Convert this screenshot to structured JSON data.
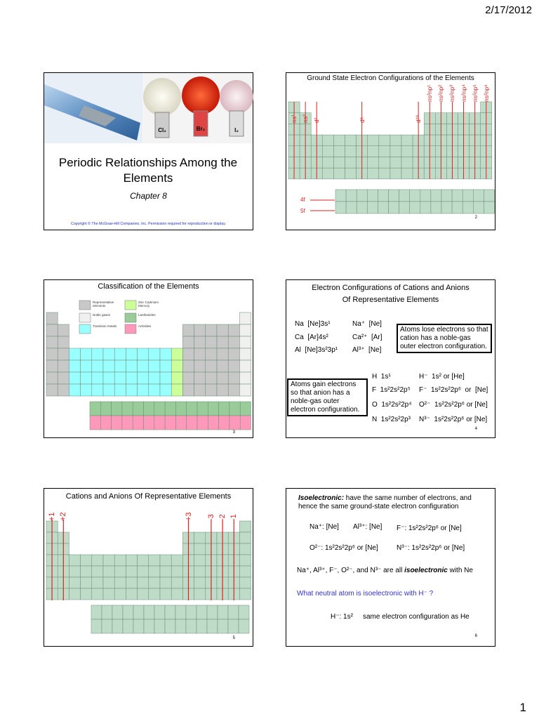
{
  "header": {
    "date": "2/17/2012"
  },
  "slides": [
    {
      "title": "Periodic Relationships Among the Elements",
      "subtitle": "Chapter 8",
      "flask_labels": [
        "Cl₂",
        "Br₂",
        "I₂"
      ],
      "copyright": "Copyright © The McGraw-Hill Companies, Inc.  Permission required for reproduction or display."
    },
    {
      "title": "Ground State Electron Configurations of the Elements",
      "s_labels": [
        "ns¹",
        "ns²"
      ],
      "d_labels": [
        "d¹",
        "d⁵",
        "d¹⁰"
      ],
      "p_labels": [
        "ns²np¹",
        "ns²np²",
        "ns²np³",
        "ns²np⁴",
        "ns²np⁵",
        "ns²np⁶"
      ],
      "f_labels": [
        "4f",
        "5f"
      ],
      "page": "2"
    },
    {
      "title": "Classification of the Elements",
      "legend": [
        "Representative elements",
        "Noble gases",
        "Transition metals",
        "Zinc Cadmium Mercury",
        "Lanthanides",
        "Actinides"
      ],
      "page": "3"
    },
    {
      "title": [
        "Electron Configurations of Cations and Anions",
        "Of Representative Elements"
      ],
      "cations": [
        [
          "Na  [Ne]3s¹",
          "Na⁺  [Ne]"
        ],
        [
          "Ca  [Ar]4s²",
          "Ca²⁺  [Ar]"
        ],
        [
          "Al  [Ne]3s²3p¹",
          "Al³⁺  [Ne]"
        ]
      ],
      "cation_note": "Atoms lose electrons so that cation has a noble-gas outer electron configuration.",
      "anion_note": "Atoms gain electrons so that anion has a noble-gas outer electron configuration.",
      "anions": [
        [
          "H  1s¹",
          "H⁻  1s² or [He]"
        ],
        [
          "F  1s²2s²2p⁵",
          "F⁻  1s²2s²2p⁶  or  [Ne]"
        ],
        [
          "O  1s²2s²2p⁴",
          "O²⁻  1s²2s²2p⁶ or [Ne]"
        ],
        [
          "N  1s²2s²2p³",
          "N³⁻  1s²2s²2p⁶ or [Ne]"
        ]
      ],
      "page": "4"
    },
    {
      "title": "Cations and Anions Of Representative Elements",
      "charge_labels": [
        "+1",
        "+2",
        "+3",
        "-3",
        "-2",
        "-1"
      ],
      "page": "5"
    },
    {
      "definition_term": "Isoelectronic:",
      "definition": " have the same number of electrons, and hence the same ground-state electron configuration",
      "examples": [
        "Na⁺: [Ne]",
        "Al³⁺: [Ne]",
        "F⁻: 1s²2s²2p⁶ or [Ne]",
        "O²⁻: 1s²2s²2p⁶ or [Ne]",
        "N³⁻: 1s²2s²2p⁶ or [Ne]"
      ],
      "summary": [
        "Na⁺, Al³⁺, F⁻, O²⁻, and N³⁻ are all ",
        "isoelectronic",
        " with Ne"
      ],
      "question": "What neutral atom is isoelectronic with H⁻ ?",
      "answer": [
        "H⁻: 1s²",
        "same electron configuration as He"
      ],
      "page": "6"
    }
  ],
  "footer": {
    "page_number": "1"
  }
}
